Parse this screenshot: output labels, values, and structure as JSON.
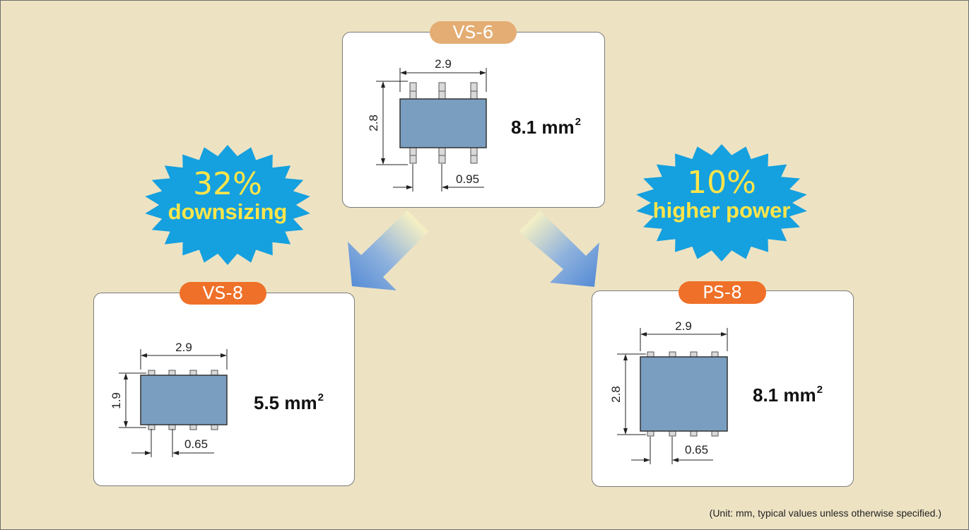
{
  "packages": {
    "vs6": {
      "name": "VS-6",
      "width": "2.9",
      "height": "2.8",
      "pitch": "0.95",
      "area_value": "8.1 mm",
      "area_exp": "2"
    },
    "vs8": {
      "name": "VS-8",
      "width": "2.9",
      "height": "1.9",
      "pitch": "0.65",
      "area_value": "5.5 mm",
      "area_exp": "2"
    },
    "ps8": {
      "name": "PS-8",
      "width": "2.9",
      "height": "2.8",
      "pitch": "0.65",
      "area_value": "8.1 mm",
      "area_exp": "2"
    }
  },
  "badges": {
    "left": {
      "percent": "32%",
      "caption": "downsizing"
    },
    "right": {
      "percent": "10%",
      "caption": "higher power"
    }
  },
  "footnote": "(Unit: mm, typical values unless otherwise specified.)",
  "colors": {
    "background": "#ede3c3",
    "chip_body": "#7a9ec0",
    "pill_tan": "#e4ad73",
    "pill_orange": "#ef7028",
    "burst_blue": "#15a0df",
    "burst_text": "#ffe54a",
    "arrow_blue": "#5b8fd6"
  }
}
